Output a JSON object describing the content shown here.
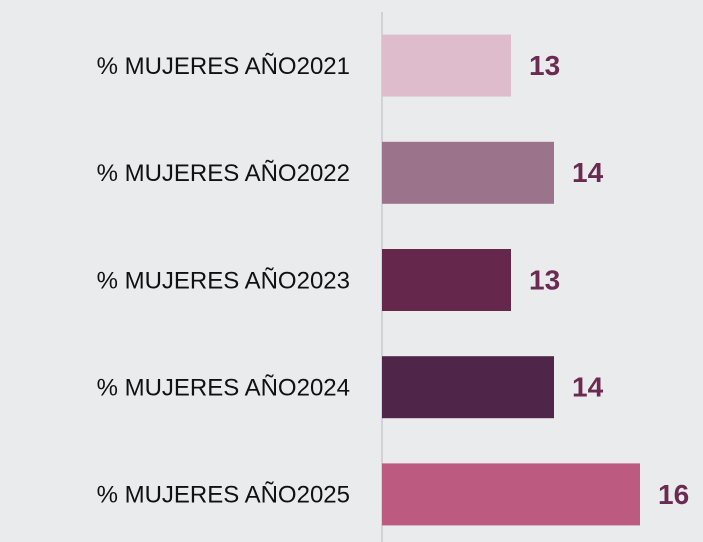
{
  "chart_data": {
    "type": "bar",
    "orientation": "horizontal",
    "categories": [
      "% MUJERES AÑO2021",
      "% MUJERES AÑO2022",
      "% MUJERES AÑO2023",
      "% MUJERES AÑO2024",
      "% MUJERES AÑO2025"
    ],
    "values": [
      13,
      14,
      13,
      14,
      16
    ],
    "colors": [
      "#dfbccb",
      "#9b738b",
      "#65274b",
      "#4f2649",
      "#bc5a7f"
    ],
    "label_color": "#6b2a52",
    "xlim": [
      10,
      17
    ],
    "xticks": []
  }
}
